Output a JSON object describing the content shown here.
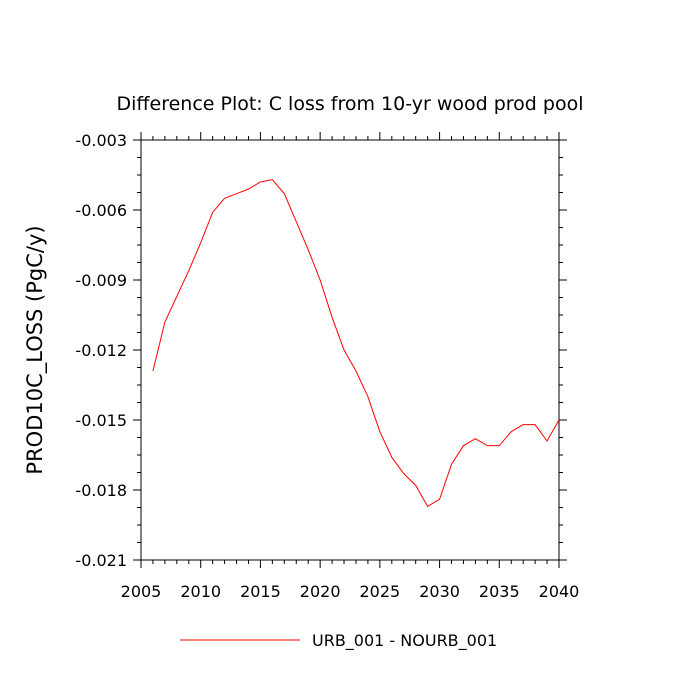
{
  "chart_data": {
    "type": "line",
    "title": "Difference Plot: C loss from 10-yr wood prod pool",
    "xlabel": "",
    "ylabel": "PROD10C_LOSS  (PgC/y)",
    "xlim": [
      2005,
      2040
    ],
    "ylim": [
      -0.021,
      -0.003
    ],
    "x_ticks": [
      2005,
      2010,
      2015,
      2020,
      2025,
      2030,
      2035,
      2040
    ],
    "x_tick_labels": [
      "2005",
      "2010",
      "2015",
      "2020",
      "2025",
      "2030",
      "2035",
      "2040"
    ],
    "y_ticks": [
      -0.021,
      -0.018,
      -0.015,
      -0.012,
      -0.009,
      -0.006,
      -0.003
    ],
    "y_tick_labels": [
      "-0.021",
      "-0.018",
      "-0.015",
      "-0.012",
      "-0.009",
      "-0.006",
      "-0.003"
    ],
    "grid": false,
    "legend": "bottom",
    "series": [
      {
        "name": "URB_001 - NOURB_001",
        "color": "#ff0000",
        "x": [
          2006,
          2007,
          2008,
          2009,
          2010,
          2011,
          2012,
          2013,
          2014,
          2015,
          2016,
          2017,
          2018,
          2019,
          2020,
          2021,
          2022,
          2023,
          2024,
          2025,
          2026,
          2027,
          2028,
          2029,
          2030,
          2031,
          2032,
          2033,
          2034,
          2035,
          2036,
          2037,
          2038,
          2039,
          2040
        ],
        "y": [
          -0.0129,
          -0.0108,
          -0.0097,
          -0.0086,
          -0.0074,
          -0.0061,
          -0.0055,
          -0.0053,
          -0.0051,
          -0.0048,
          -0.0047,
          -0.0053,
          -0.0065,
          -0.0077,
          -0.009,
          -0.0106,
          -0.012,
          -0.0129,
          -0.014,
          -0.0155,
          -0.0166,
          -0.0173,
          -0.0178,
          -0.0187,
          -0.0184,
          -0.0169,
          -0.0161,
          -0.0158,
          -0.0161,
          -0.0161,
          -0.0155,
          -0.0152,
          -0.0152,
          -0.0159,
          -0.015
        ]
      }
    ]
  }
}
